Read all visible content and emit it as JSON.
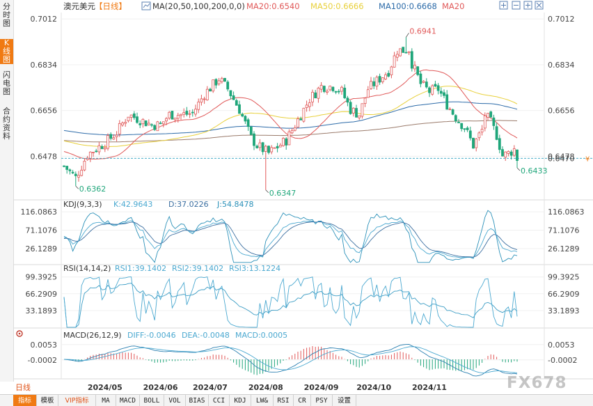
{
  "sidebar": {
    "tabs": [
      {
        "label": "分时图",
        "active": false
      },
      {
        "label": "K线图",
        "active": true
      },
      {
        "label": "闪电图",
        "active": false
      },
      {
        "label": "合约资料",
        "active": false
      }
    ]
  },
  "header": {
    "symbol": "澳元美元",
    "period_tag": "【日线】",
    "ma_label": "MA(20,50,100,200,0,0)",
    "ma20": "MA20:0.6540",
    "ma50": "MA50:0.6666",
    "ma100": "MA100:0.6668",
    "ma20_tail": "MA20"
  },
  "colors": {
    "up": "#e05858",
    "down": "#1fa67a",
    "ma20": "#e05858",
    "ma50": "#e8d03a",
    "ma100": "#2b6aa8",
    "ma200": "#9a7a6a",
    "accent": "#f07a13",
    "kdj_k": "#4aa8d0",
    "kdj_d": "#3a6ea0",
    "kdj_j": "#2a90b8"
  },
  "chart_data": [
    {
      "type": "candlestick",
      "name": "main",
      "y_ticks": [
        "0.7012",
        "0.6834",
        "0.6656",
        "0.6478"
      ],
      "ylim": [
        0.6322,
        0.7037
      ],
      "current_price": "0.6470",
      "current_value": 0.647,
      "annotations": [
        {
          "text": "0.6941",
          "value": 0.6941,
          "x_index": 117
        },
        {
          "text": "0.6362",
          "value": 0.6362,
          "x_index": 4
        },
        {
          "text": "0.6347",
          "value": 0.6347,
          "x_index": 69
        },
        {
          "text": "0.6433",
          "value": 0.6433,
          "x_index": 155
        }
      ],
      "x_labels": [
        "2024/05",
        "2024/06",
        "2024/07",
        "2024/08",
        "2024/09",
        "2024/10",
        "2024/11"
      ],
      "x_label_index": [
        14,
        33,
        50,
        69,
        88,
        106,
        125
      ],
      "count": 156,
      "close_anchors": [
        [
          0,
          0.644
        ],
        [
          4,
          0.6395
        ],
        [
          8,
          0.6485
        ],
        [
          14,
          0.653
        ],
        [
          18,
          0.657
        ],
        [
          22,
          0.664
        ],
        [
          26,
          0.662
        ],
        [
          30,
          0.66
        ],
        [
          33,
          0.66
        ],
        [
          36,
          0.664
        ],
        [
          40,
          0.664
        ],
        [
          44,
          0.6645
        ],
        [
          48,
          0.672
        ],
        [
          53,
          0.678
        ],
        [
          56,
          0.674
        ],
        [
          60,
          0.666
        ],
        [
          64,
          0.655
        ],
        [
          66,
          0.652
        ],
        [
          68,
          0.6505
        ],
        [
          70,
          0.649
        ],
        [
          73,
          0.6515
        ],
        [
          76,
          0.654
        ],
        [
          80,
          0.662
        ],
        [
          84,
          0.67
        ],
        [
          88,
          0.675
        ],
        [
          92,
          0.675
        ],
        [
          95,
          0.673
        ],
        [
          98,
          0.666
        ],
        [
          101,
          0.664
        ],
        [
          104,
          0.674
        ],
        [
          108,
          0.678
        ],
        [
          111,
          0.681
        ],
        [
          114,
          0.689
        ],
        [
          116,
          0.689
        ],
        [
          118,
          0.6895
        ],
        [
          119,
          0.684
        ],
        [
          122,
          0.676
        ],
        [
          125,
          0.673
        ],
        [
          128,
          0.674
        ],
        [
          131,
          0.668
        ],
        [
          134,
          0.663
        ],
        [
          137,
          0.659
        ],
        [
          140,
          0.652
        ],
        [
          143,
          0.658
        ],
        [
          144,
          0.664
        ],
        [
          146,
          0.661
        ],
        [
          148,
          0.656
        ],
        [
          150,
          0.648
        ],
        [
          152,
          0.649
        ],
        [
          154,
          0.6505
        ],
        [
          155,
          0.647
        ]
      ]
    },
    {
      "type": "line",
      "name": "KDJ(9,3,3)",
      "label": "KDJ(9,3,3)",
      "values_text": {
        "k": "K:42.9643",
        "d": "D:37.0226",
        "j": "J:54.8478"
      },
      "y_ticks": [
        "116.0863",
        "71.1076",
        "26.1289"
      ],
      "ylim": [
        -10,
        130
      ]
    },
    {
      "type": "line",
      "name": "RSI(14,14,2)",
      "label": "RSI(14,14,2)",
      "values_text": {
        "rsi1": "RSI1:39.1402",
        "rsi2": "RSI2:39.1402",
        "rsi3": "RSI3:13.1224"
      },
      "y_ticks": [
        "99.3925",
        "66.2909",
        "33.1893"
      ],
      "ylim": [
        0,
        110
      ]
    },
    {
      "type": "bar",
      "name": "MACD(26,12,9)",
      "label": "MACD(26,12,9)",
      "values_text": {
        "diff": "DIFF:-0.0046",
        "dea": "DEA:-0.0048",
        "macd": "MACD:0.0005"
      },
      "y_ticks": [
        "0.0053",
        "-0.0002"
      ],
      "ylim": [
        -0.0055,
        0.0075
      ]
    }
  ],
  "period_selector": "日线",
  "bottom_tabs": [
    "指标",
    "模板",
    "VIP指标",
    "MA",
    "MACD",
    "BOLL",
    "VOL",
    "BIAS",
    "CCI",
    "KDJ",
    "LW&",
    "RSI",
    "CR",
    "PSY",
    "设置"
  ],
  "watermark": "FX678",
  "icons": [
    "gear-icon",
    "zoom-in-icon",
    "zoom-out-icon",
    "crosshair-icon",
    "close-icon",
    "chart-type-icon"
  ]
}
